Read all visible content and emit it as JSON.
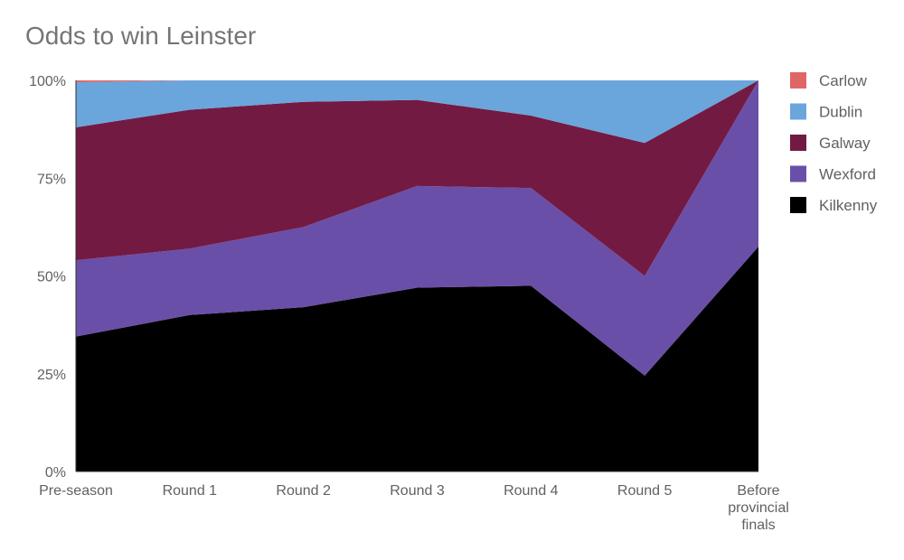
{
  "chart_data": {
    "type": "area",
    "stacked": true,
    "normalized": true,
    "title": "Odds to win Leinster",
    "categories": [
      "Pre-season",
      "Round 1",
      "Round 2",
      "Round 3",
      "Round 4",
      "Round 5",
      "Before provincial finals"
    ],
    "y_ticks": [
      "0%",
      "25%",
      "50%",
      "75%",
      "100%"
    ],
    "ylim": [
      0,
      100
    ],
    "legend_position": "right",
    "series": [
      {
        "name": "Kilkenny",
        "color": "#000000",
        "values": [
          34.5,
          40,
          42,
          47,
          47.5,
          24.5,
          57.5
        ]
      },
      {
        "name": "Wexford",
        "color": "#6a4fa8",
        "values": [
          19.5,
          17,
          20.5,
          26,
          25,
          25.5,
          42.5
        ]
      },
      {
        "name": "Galway",
        "color": "#731a43",
        "values": [
          34,
          35.5,
          32,
          22,
          18.5,
          34,
          0
        ]
      },
      {
        "name": "Dublin",
        "color": "#6aa5dc",
        "values": [
          11.5,
          7.5,
          5.5,
          5,
          9,
          16,
          0
        ]
      },
      {
        "name": "Carlow",
        "color": "#e06666",
        "values": [
          0.5,
          0,
          0,
          0,
          0,
          0,
          0
        ]
      }
    ],
    "legend_order": [
      "Carlow",
      "Dublin",
      "Galway",
      "Wexford",
      "Kilkenny"
    ]
  }
}
